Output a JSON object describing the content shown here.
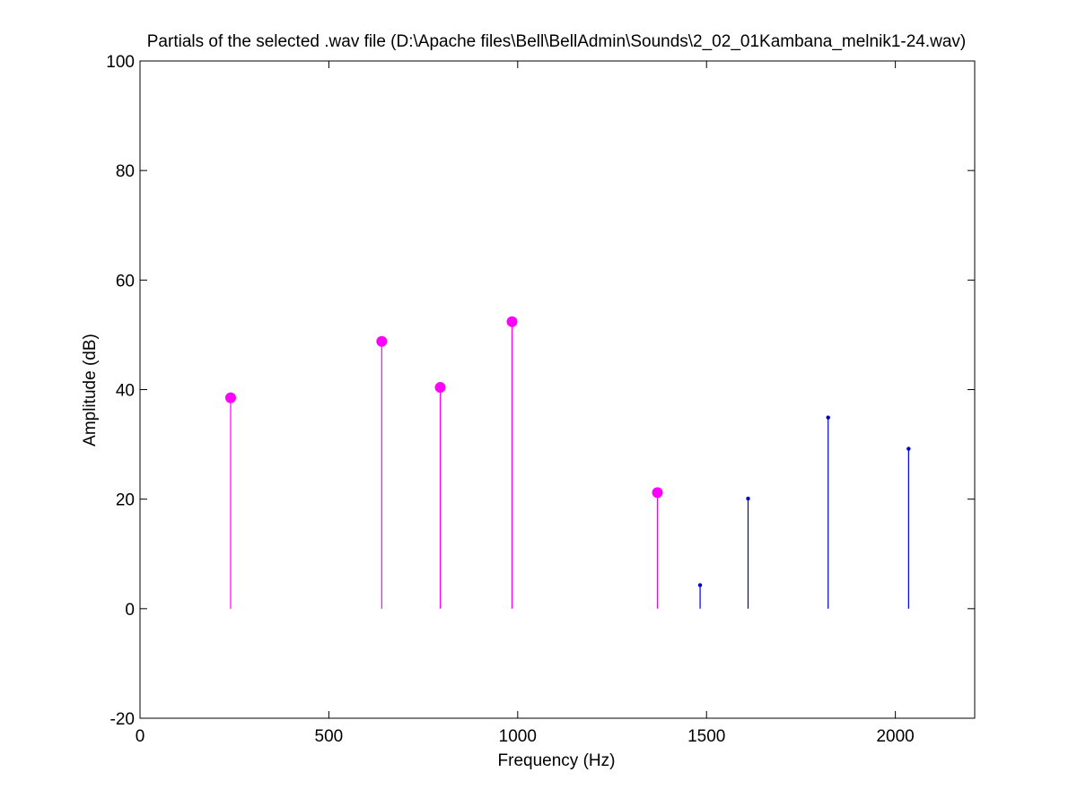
{
  "window": {
    "background": "#ffffff"
  },
  "chart_data": {
    "type": "stem",
    "title": "Partials of the selected .wav file (D:\\Apache files\\Bell\\BellAdmin\\Sounds\\2_02_01Kambana_melnik1-24.wav)",
    "xlabel": "Frequency (Hz)",
    "ylabel": "Amplitude (dB)",
    "xlim": [
      0,
      2210
    ],
    "ylim": [
      -20,
      100
    ],
    "xticks": [
      0,
      500,
      1000,
      1500,
      2000
    ],
    "yticks": [
      -20,
      0,
      20,
      40,
      60,
      80,
      100
    ],
    "grid": false,
    "legend": "none",
    "series": [
      {
        "color": "#ff00ff",
        "marker": "filled-circle",
        "x": [
          240,
          640,
          795,
          985,
          1370
        ],
        "y": [
          38.5,
          48.8,
          40.4,
          52.4,
          21.2
        ]
      },
      {
        "color": "#0000cc",
        "marker": "dot",
        "x": [
          1483,
          1610,
          1822,
          2035
        ],
        "y": [
          4.3,
          20.1,
          34.9,
          29.2
        ]
      }
    ]
  }
}
